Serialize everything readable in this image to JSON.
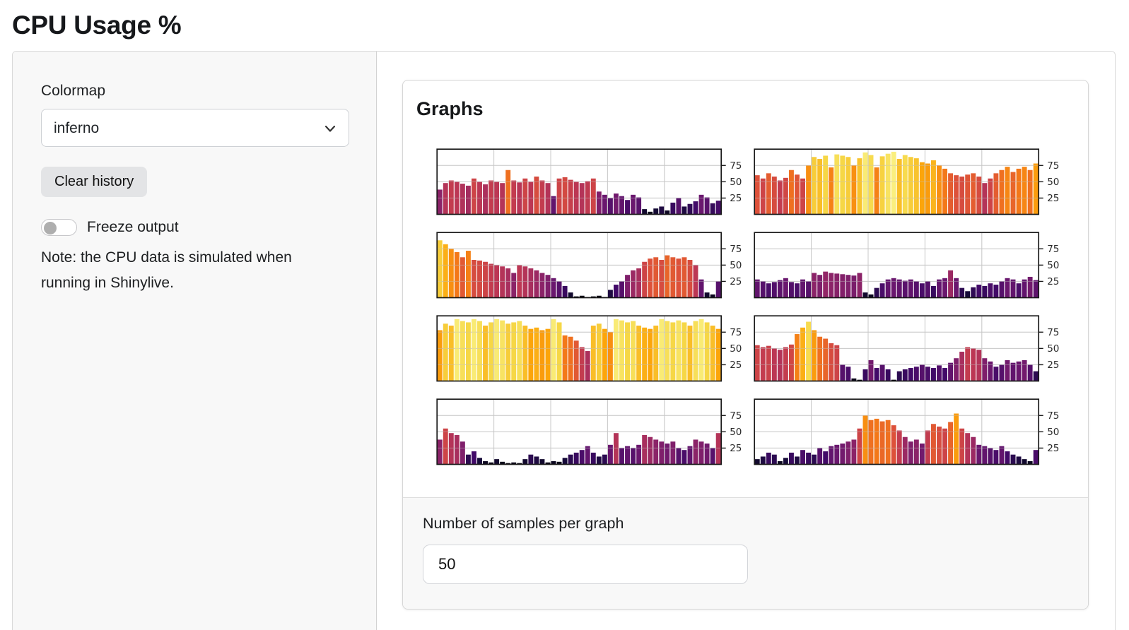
{
  "page": {
    "title": "CPU Usage %"
  },
  "sidebar": {
    "colormap_label": "Colormap",
    "colormap_value": "inferno",
    "clear_button_label": "Clear history",
    "freeze_label": "Freeze output",
    "note": "Note: the CPU data is simulated when running in Shinylive."
  },
  "main": {
    "card_title": "Graphs",
    "samples_label": "Number of samples per graph",
    "samples_value": "50"
  },
  "colors": {
    "sidebar_bg": "#f8f8f8",
    "panel_border": "#d9d9d9",
    "card_footer_bg": "#f8f8f8",
    "button_bg": "#e3e4e6",
    "axis_line": "#1a1a1a",
    "grid_line": "#cfcfcf",
    "text": "#1b1e21"
  },
  "chart_data": {
    "type": "bar",
    "title": "",
    "xlabel": "",
    "ylabel": "",
    "layout": "2 columns x 4 rows of mini bar charts, y-axis ticks on right side",
    "samples_per_graph": 50,
    "ylim": [
      0,
      100
    ],
    "yticks": [
      25,
      50,
      75
    ],
    "x_gridlines": [
      10,
      20,
      30,
      40
    ],
    "grid": true,
    "colormap": "inferno",
    "inferno_stops": [
      "#000004",
      "#160b39",
      "#420a68",
      "#6a176e",
      "#932667",
      "#bc3754",
      "#dd513a",
      "#f37819",
      "#fca50a",
      "#f6d746",
      "#fcffa4"
    ],
    "series": [
      {
        "name": "cpu-graph-1",
        "values": [
          38,
          48,
          52,
          50,
          47,
          44,
          55,
          50,
          46,
          52,
          50,
          48,
          68,
          52,
          49,
          55,
          50,
          58,
          52,
          48,
          28,
          55,
          57,
          53,
          50,
          48,
          51,
          55,
          35,
          30,
          25,
          32,
          28,
          22,
          30,
          26,
          8,
          4,
          9,
          12,
          6,
          18,
          25,
          12,
          16,
          20,
          30,
          26,
          17,
          21
        ]
      },
      {
        "name": "cpu-graph-2",
        "values": [
          60,
          55,
          63,
          58,
          52,
          56,
          68,
          61,
          55,
          75,
          88,
          85,
          90,
          72,
          92,
          90,
          88,
          75,
          86,
          95,
          91,
          72,
          89,
          93,
          96,
          85,
          91,
          88,
          86,
          80,
          78,
          83,
          75,
          70,
          63,
          60,
          58,
          61,
          63,
          58,
          48,
          55,
          63,
          68,
          73,
          65,
          70,
          73,
          68,
          78
        ]
      },
      {
        "name": "cpu-graph-3",
        "values": [
          88,
          82,
          75,
          70,
          62,
          72,
          58,
          57,
          55,
          52,
          50,
          48,
          45,
          38,
          50,
          48,
          45,
          42,
          38,
          35,
          30,
          25,
          18,
          8,
          2,
          3,
          1,
          2,
          3,
          1,
          12,
          20,
          25,
          35,
          42,
          45,
          55,
          60,
          62,
          58,
          65,
          62,
          60,
          62,
          58,
          50,
          28,
          8,
          5,
          25
        ]
      },
      {
        "name": "cpu-graph-4",
        "values": [
          28,
          25,
          22,
          24,
          27,
          30,
          24,
          22,
          28,
          25,
          38,
          35,
          40,
          38,
          37,
          36,
          35,
          34,
          38,
          8,
          5,
          15,
          22,
          28,
          30,
          28,
          26,
          28,
          25,
          22,
          25,
          18,
          28,
          30,
          42,
          30,
          15,
          10,
          16,
          20,
          18,
          22,
          20,
          25,
          30,
          28,
          22,
          28,
          32,
          27
        ]
      },
      {
        "name": "cpu-graph-5",
        "values": [
          78,
          88,
          85,
          95,
          92,
          90,
          95,
          92,
          85,
          90,
          95,
          93,
          88,
          90,
          92,
          85,
          80,
          82,
          78,
          80,
          95,
          90,
          70,
          68,
          62,
          52,
          46,
          85,
          88,
          80,
          75,
          95,
          93,
          90,
          92,
          85,
          82,
          80,
          85,
          95,
          92,
          90,
          93,
          90,
          85,
          92,
          95,
          90,
          85,
          80
        ]
      },
      {
        "name": "cpu-graph-6",
        "values": [
          55,
          52,
          54,
          50,
          48,
          52,
          56,
          72,
          82,
          91,
          78,
          68,
          65,
          58,
          55,
          25,
          22,
          4,
          2,
          18,
          32,
          20,
          25,
          18,
          2,
          15,
          18,
          20,
          22,
          25,
          22,
          20,
          24,
          20,
          28,
          35,
          45,
          52,
          50,
          48,
          35,
          30,
          22,
          25,
          32,
          28,
          30,
          32,
          25,
          15
        ]
      },
      {
        "name": "cpu-graph-7",
        "values": [
          38,
          55,
          48,
          45,
          35,
          15,
          20,
          10,
          5,
          3,
          8,
          4,
          2,
          3,
          2,
          8,
          15,
          12,
          8,
          3,
          5,
          4,
          10,
          15,
          18,
          22,
          28,
          18,
          12,
          15,
          30,
          48,
          25,
          28,
          25,
          30,
          45,
          42,
          38,
          35,
          32,
          35,
          25,
          22,
          28,
          38,
          35,
          32,
          25,
          48
        ]
      },
      {
        "name": "cpu-graph-8",
        "values": [
          8,
          12,
          18,
          15,
          5,
          10,
          18,
          12,
          22,
          18,
          15,
          25,
          20,
          28,
          30,
          32,
          35,
          38,
          55,
          75,
          68,
          70,
          66,
          68,
          60,
          52,
          42,
          35,
          38,
          32,
          52,
          62,
          58,
          55,
          65,
          78,
          55,
          48,
          42,
          30,
          28,
          25,
          22,
          28,
          20,
          15,
          12,
          8,
          5,
          22
        ]
      }
    ]
  }
}
